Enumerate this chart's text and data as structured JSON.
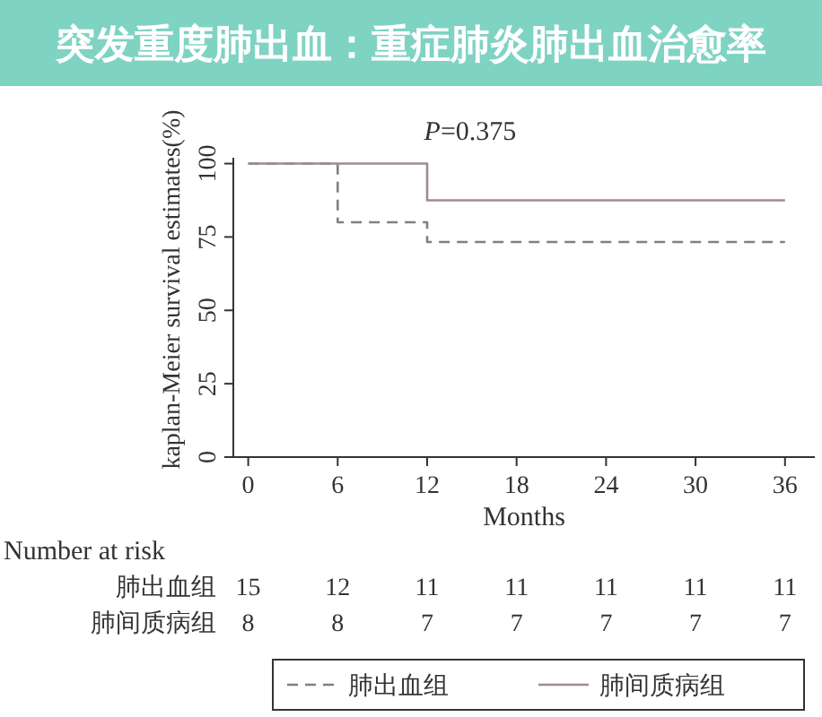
{
  "chart_data": {
    "type": "step",
    "title": "突发重度肺出血：重症肺炎肺出血治愈率",
    "xlabel": "Months",
    "ylabel": "kaplan-Meier survival estimates(%)",
    "xlim": [
      -1,
      38
    ],
    "xticks": [
      0,
      6,
      12,
      18,
      24,
      30,
      36
    ],
    "ylim": [
      0,
      102
    ],
    "yticks": [
      0,
      25,
      50,
      75,
      100
    ],
    "grid": false,
    "legend": "bottom",
    "marker": "none",
    "series": [
      {
        "name": "肺出血组",
        "color": "#808080",
        "line_style": "dashed",
        "x": [
          0,
          6,
          12,
          36
        ],
        "values": [
          100,
          80,
          73.3,
          73.3
        ]
      },
      {
        "name": "肺间质病组",
        "color": "#a08c8c",
        "line_style": "solid",
        "x": [
          0,
          12,
          36
        ],
        "values": [
          100,
          87.5,
          87.5
        ]
      }
    ],
    "annotations": [
      "P=0.375",
      "Number at risk",
      "肺出血组",
      "15",
      "12",
      "11",
      "11",
      "11",
      "11",
      "11",
      "肺间质病组",
      "8",
      "8",
      "7",
      "7",
      "7",
      "7",
      "7"
    ]
  }
}
